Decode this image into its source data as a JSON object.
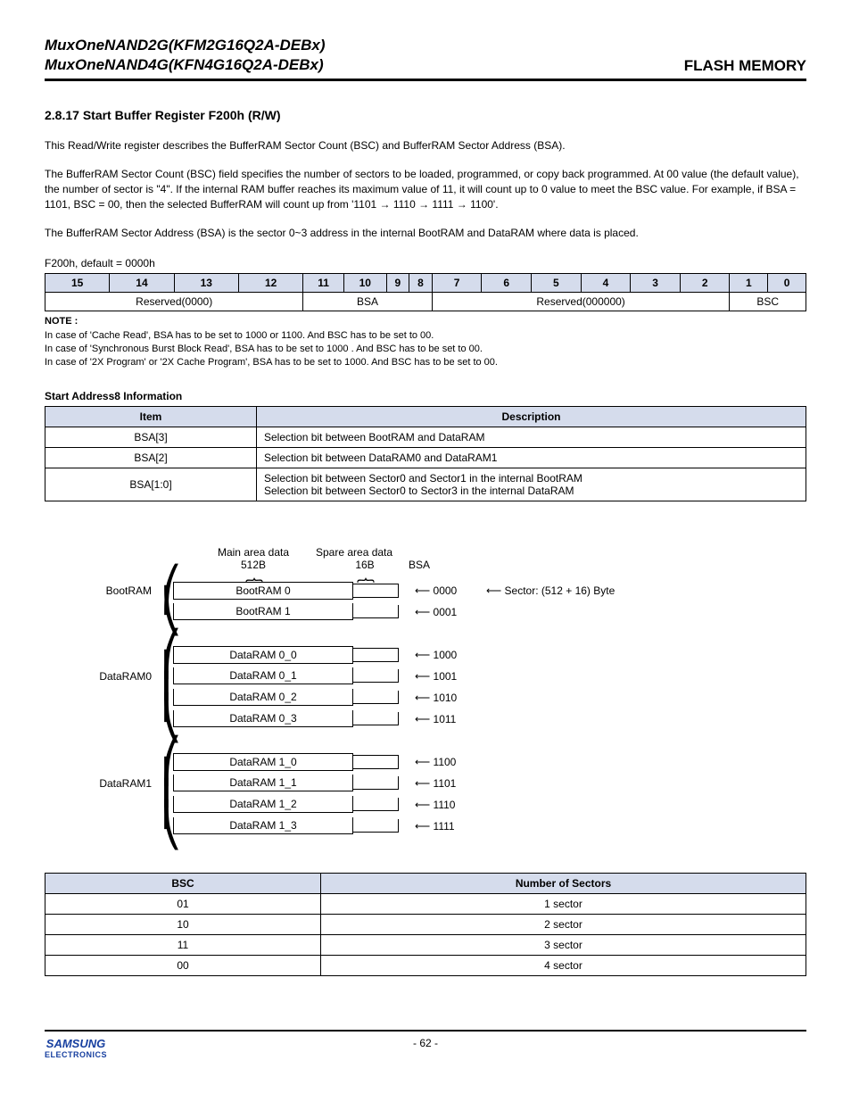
{
  "header": {
    "line1": "MuxOneNAND2G(KFM2G16Q2A-DEBx)",
    "line2": "MuxOneNAND4G(KFN4G16Q2A-DEBx)",
    "right": "FLASH MEMORY"
  },
  "section_title": "2.8.17 Start Buffer Register F200h (R/W)",
  "para1": "This Read/Write register describes the BufferRAM Sector Count (BSC) and BufferRAM Sector Address (BSA).",
  "para2": "The BufferRAM Sector Count (BSC) field specifies the number of sectors to be loaded, programmed, or copy back programmed. At 00 value (the default value), the number of sector is \"4\". If the internal RAM buffer reaches its maximum value of 11, it will count up to 0 value to meet the BSC value.  For example, if BSA = 1101, BSC = 00, then the selected BufferRAM will count up from '1101 → 1110 → 1111 → 1100'.",
  "para3": "The BufferRAM Sector Address (BSA) is the sector 0~3 address in the internal BootRAM and DataRAM where data is placed.",
  "reg_default": "F200h, default = 0000h",
  "bitfield": {
    "bits": [
      "15",
      "14",
      "13",
      "12",
      "11",
      "10",
      "9",
      "8",
      "7",
      "6",
      "5",
      "4",
      "3",
      "2",
      "1",
      "0"
    ],
    "fields": [
      {
        "label": "Reserved(0000)",
        "span": 4
      },
      {
        "label": "BSA",
        "span": 4
      },
      {
        "label": "Reserved(000000)",
        "span": 6
      },
      {
        "label": "BSC",
        "span": 2
      }
    ]
  },
  "note_head": "NOTE :",
  "note1": "In case of 'Cache Read', BSA has to be set to 1000 or 1100. And BSC has to be set to 00.",
  "note2": "In case of 'Synchronous Burst Block Read', BSA has to be set to 1000 . And BSC has to be set to 00.",
  "note3": "In case of '2X Program' or '2X Cache Program', BSA has to be set to 1000. And BSC has to be set to 00.",
  "addr8_title": "Start Address8 Information",
  "addr8": {
    "cols": [
      "Item",
      "Description"
    ],
    "rows": [
      {
        "item": "BSA[3]",
        "desc": "Selection bit between BootRAM and DataRAM"
      },
      {
        "item": "BSA[2]",
        "desc": "Selection bit between DataRAM0 and DataRAM1"
      },
      {
        "item": "BSA[1:0]",
        "desc": "Selection bit between Sector0 and Sector1 in the internal BootRAM\nSelection bit between Sector0 to Sector3 in the internal DataRAM"
      }
    ]
  },
  "diagram": {
    "main_header": "Main area data",
    "main_sub": "512B",
    "spare_header": "Spare area data",
    "spare_sub": "16B",
    "bsa_label": "BSA",
    "sector_label": "Sector: (512 + 16) Byte",
    "groups": [
      {
        "label": "BootRAM",
        "rows": [
          {
            "name": "BootRAM 0",
            "bsa": "0000",
            "extra": true
          },
          {
            "name": "BootRAM 1",
            "bsa": "0001"
          }
        ]
      },
      {
        "label": "DataRAM0",
        "rows": [
          {
            "name": "DataRAM 0_0",
            "bsa": "1000"
          },
          {
            "name": "DataRAM 0_1",
            "bsa": "1001"
          },
          {
            "name": "DataRAM 0_2",
            "bsa": "1010"
          },
          {
            "name": "DataRAM 0_3",
            "bsa": "1011"
          }
        ]
      },
      {
        "label": "DataRAM1",
        "rows": [
          {
            "name": "DataRAM 1_0",
            "bsa": "1100"
          },
          {
            "name": "DataRAM 1_1",
            "bsa": "1101"
          },
          {
            "name": "DataRAM 1_2",
            "bsa": "1110"
          },
          {
            "name": "DataRAM 1_3",
            "bsa": "1111"
          }
        ]
      }
    ]
  },
  "bsc_table": {
    "cols": [
      "BSC",
      "Number of Sectors"
    ],
    "rows": [
      {
        "bsc": "01",
        "n": "1 sector"
      },
      {
        "bsc": "10",
        "n": "2 sector"
      },
      {
        "bsc": "11",
        "n": "3 sector"
      },
      {
        "bsc": "00",
        "n": "4 sector"
      }
    ]
  },
  "page_num": "- 62 -",
  "logo_main": "SAMSUNG",
  "logo_sub": "ELECTRONICS"
}
